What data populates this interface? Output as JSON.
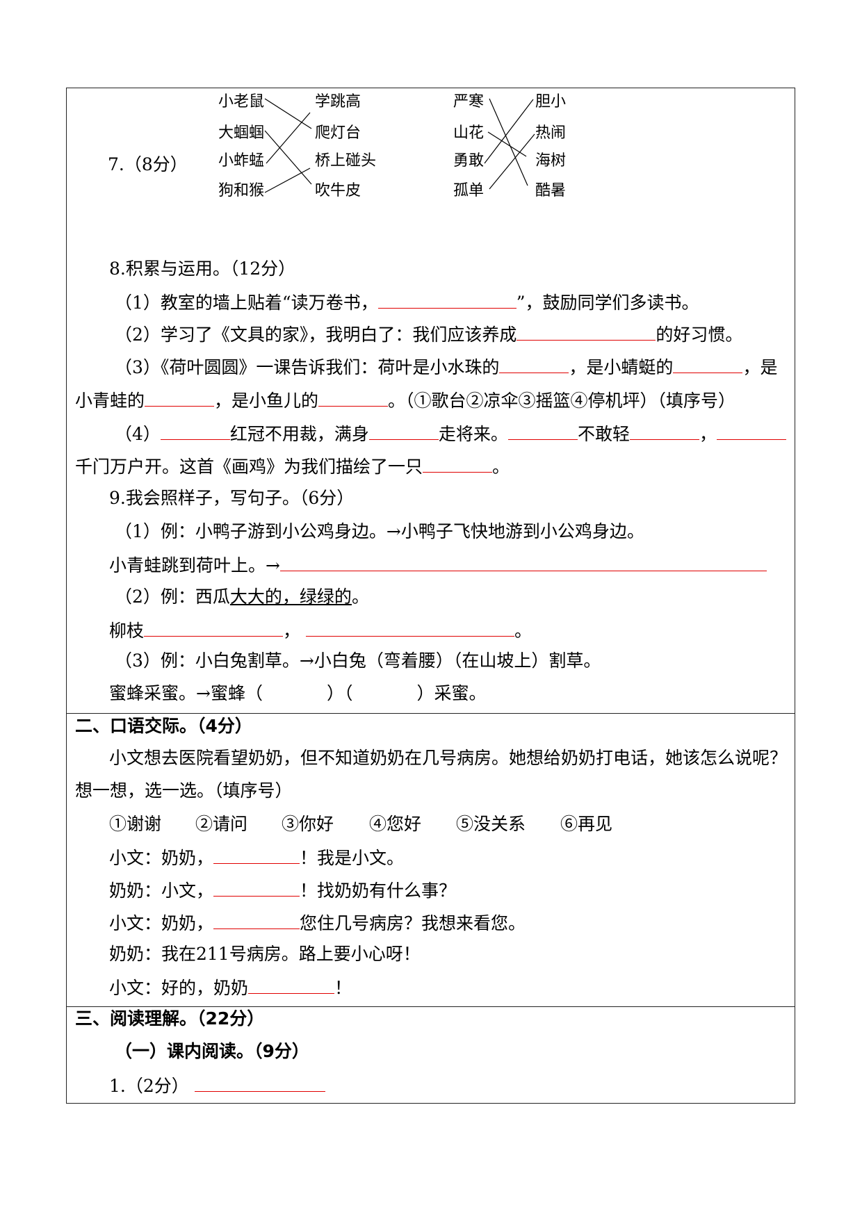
{
  "q7": {
    "label": "7.（8分）",
    "left_a": [
      "小老鼠",
      "大蝈蝈",
      "小蚱蜢",
      "狗和猴"
    ],
    "right_a": [
      "学跳高",
      "爬灯台",
      "桥上碰头",
      "吹牛皮"
    ],
    "left_b": [
      "严寒",
      "山花",
      "勇敢",
      "孤单"
    ],
    "right_b": [
      "胆小",
      "热闹",
      "海树",
      "酷暑"
    ]
  },
  "q8": {
    "title": "8.积累与运用。（12分）",
    "p1a": "（1）教室的墙上贴着“读万卷书，",
    "p1b": "”，鼓励同学们多读书。",
    "p2a": "（2）学习了《文具的家》，我明白了：我们应该养成",
    "p2b": "的好习惯。",
    "p3a": "（3）《荷叶圆圆》一课告诉我们：荷叶是小水珠的",
    "p3b": "，是小蜻蜓的",
    "p3c": "，是",
    "p3d": "小青蛙的",
    "p3e": "，是小鱼儿的",
    "p3f": "。（①歌台②凉伞③摇篮④停机坪）（填序号）",
    "p4a": "（4）",
    "p4b": "红冠不用裁，满身",
    "p4c": "走将来。",
    "p4d": "不敢轻",
    "p4e": "，",
    "p4f": "千门万户开。这首《画鸡》为我们描绘了一只",
    "p4g": "。"
  },
  "q9": {
    "title": "9.我会照样子，写句子。（6分）",
    "e1": "（1）例：小鸭子游到小公鸡身边。→小鸭子飞快地游到小公鸡身边。",
    "a1": "小青蛙跳到荷叶上。→",
    "e2a": "（2）例：西瓜",
    "e2b": "大大的，绿绿的",
    "e2c": "。",
    "a2a": "柳枝",
    "a2b": "，",
    "a2c": "。",
    "e3": "（3）例：小白兔割草。→小白兔（弯着腰）（在山坡上）割草。",
    "a3a": "蜜蜂采蜜。→蜜蜂（",
    "a3b": "）（",
    "a3c": "）采蜜。"
  },
  "s2": {
    "title": "二、口语交际。（4分）",
    "intro1": "小文想去医院看望奶奶，但不知道奶奶在几号病房。她想给奶奶打电话，她该怎么说呢？",
    "intro2": "想一想，选一选。（填序号）",
    "options": [
      "①谢谢",
      "②请问",
      "③你好",
      "④您好",
      "⑤没关系",
      "⑥再见"
    ],
    "d1a": "小文：奶奶，",
    "d1b": "！我是小文。",
    "d2a": "奶奶：小文，",
    "d2b": "！找奶奶有什么事？",
    "d3a": "小文：奶奶，",
    "d3b": "您住几号病房？我想来看您。",
    "d4": "奶奶：我在211号病房。路上要小心呀！",
    "d5a": "小文：好的，奶奶",
    "d5b": "！"
  },
  "s3": {
    "title": "三、阅读理解。（22分）",
    "sub": "（一）课内阅读。（9分）",
    "q1": "1.（2分）"
  },
  "colors": {
    "blank_line": "#e00000",
    "border": "#222222"
  }
}
